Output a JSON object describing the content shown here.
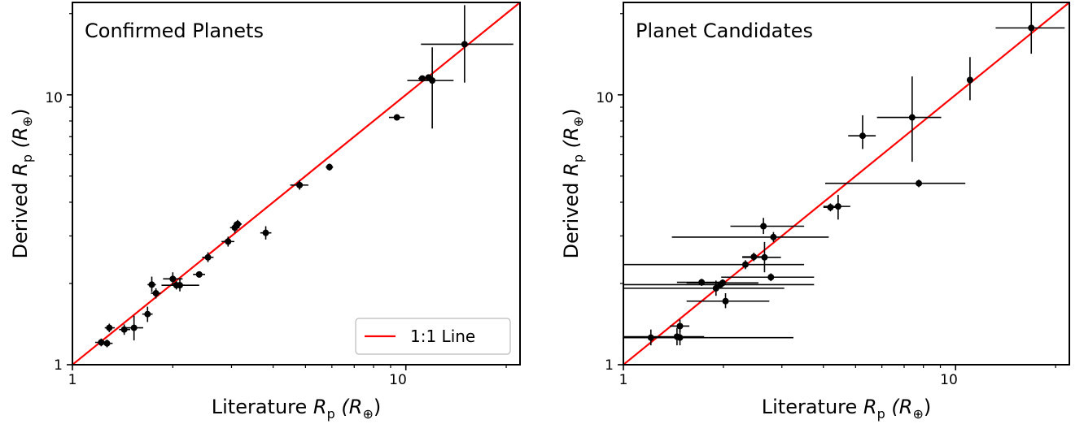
{
  "chart_data": [
    {
      "type": "scatter",
      "title": "Confirmed Planets",
      "xlabel": "Literature R_p (R_⊕)",
      "ylabel": "Derived R_p (R_⊕)",
      "xlabel_parts": {
        "pre": "Literature ",
        "sym": "R",
        "sub": "p",
        "unit": " (R",
        "unitsub": "⊕",
        "close": ")"
      },
      "ylabel_parts": {
        "pre": "Derived ",
        "sym": "R",
        "sub": "p",
        "unit": " (R",
        "unitsub": "⊕",
        "close": ")"
      },
      "xscale": "log",
      "yscale": "log",
      "xlim": [
        1,
        22
      ],
      "ylim": [
        1,
        22
      ],
      "xticks": [
        1,
        10
      ],
      "yticks": [
        1,
        10
      ],
      "xtick_labels": [
        "1",
        "10"
      ],
      "ytick_labels": [
        "1",
        "10"
      ],
      "grid": false,
      "legend": {
        "position": "bottom-right",
        "entries": [
          "1:1 Line"
        ]
      },
      "reference_line": {
        "label": "1:1 Line",
        "color": "#ff0000"
      },
      "marker_color": "#000000",
      "points": [
        {
          "x": 1.22,
          "y": 1.21,
          "xlo": 1.17,
          "xhi": 1.28,
          "ylo": 1.17,
          "yhi": 1.25
        },
        {
          "x": 1.27,
          "y": 1.2,
          "xlo": 1.22,
          "xhi": 1.32,
          "ylo": 1.16,
          "yhi": 1.24
        },
        {
          "x": 1.29,
          "y": 1.37,
          "xlo": 1.25,
          "xhi": 1.34,
          "ylo": 1.32,
          "yhi": 1.42
        },
        {
          "x": 1.43,
          "y": 1.35,
          "xlo": 1.38,
          "xhi": 1.49,
          "ylo": 1.29,
          "yhi": 1.41
        },
        {
          "x": 1.53,
          "y": 1.37,
          "xlo": 1.43,
          "xhi": 1.63,
          "ylo": 1.23,
          "yhi": 1.52
        },
        {
          "x": 1.68,
          "y": 1.54,
          "xlo": 1.62,
          "xhi": 1.74,
          "ylo": 1.44,
          "yhi": 1.64
        },
        {
          "x": 1.73,
          "y": 1.98,
          "xlo": 1.68,
          "xhi": 1.78,
          "ylo": 1.86,
          "yhi": 2.12
        },
        {
          "x": 1.78,
          "y": 1.84,
          "xlo": 1.72,
          "xhi": 1.84,
          "ylo": 1.76,
          "yhi": 1.92
        },
        {
          "x": 2.0,
          "y": 2.08,
          "xlo": 1.87,
          "xhi": 2.14,
          "ylo": 1.97,
          "yhi": 2.2
        },
        {
          "x": 2.05,
          "y": 1.97,
          "xlo": 1.85,
          "xhi": 2.4,
          "ylo": 1.9,
          "yhi": 2.04
        },
        {
          "x": 2.1,
          "y": 1.97,
          "xlo": 2.03,
          "xhi": 2.17,
          "ylo": 1.87,
          "yhi": 2.07
        },
        {
          "x": 2.4,
          "y": 2.16,
          "xlo": 2.3,
          "xhi": 2.5,
          "ylo": 2.1,
          "yhi": 2.22
        },
        {
          "x": 2.55,
          "y": 2.5,
          "xlo": 2.45,
          "xhi": 2.65,
          "ylo": 2.4,
          "yhi": 2.61
        },
        {
          "x": 2.93,
          "y": 2.86,
          "xlo": 2.8,
          "xhi": 3.06,
          "ylo": 2.74,
          "yhi": 2.98
        },
        {
          "x": 3.07,
          "y": 3.22,
          "xlo": 2.97,
          "xhi": 3.17,
          "ylo": 3.08,
          "yhi": 3.38
        },
        {
          "x": 3.13,
          "y": 3.32,
          "xlo": 3.04,
          "xhi": 3.22,
          "ylo": 3.21,
          "yhi": 3.44
        },
        {
          "x": 3.8,
          "y": 3.08,
          "xlo": 3.66,
          "xhi": 3.95,
          "ylo": 2.91,
          "yhi": 3.26
        },
        {
          "x": 4.8,
          "y": 4.63,
          "xlo": 4.5,
          "xhi": 5.1,
          "ylo": 4.45,
          "yhi": 4.82
        },
        {
          "x": 5.9,
          "y": 5.4,
          "xlo": 5.75,
          "xhi": 6.05,
          "ylo": 5.24,
          "yhi": 5.56
        },
        {
          "x": 9.4,
          "y": 8.25,
          "xlo": 8.9,
          "xhi": 9.9,
          "ylo": 8.1,
          "yhi": 8.4
        },
        {
          "x": 11.2,
          "y": 11.5,
          "xlo": 10.9,
          "xhi": 11.5,
          "ylo": 11.3,
          "yhi": 11.7
        },
        {
          "x": 11.7,
          "y": 11.6,
          "xlo": 11.4,
          "xhi": 12.0,
          "ylo": 11.4,
          "yhi": 11.8
        },
        {
          "x": 12.0,
          "y": 11.3,
          "xlo": 10.1,
          "xhi": 13.9,
          "ylo": 7.5,
          "yhi": 15.0
        },
        {
          "x": 15.0,
          "y": 15.4,
          "xlo": 11.1,
          "xhi": 21.0,
          "ylo": 11.1,
          "yhi": 21.5
        }
      ]
    },
    {
      "type": "scatter",
      "title": "Planet Candidates",
      "xlabel": "Literature R_p (R_⊕)",
      "ylabel": "Derived R_p (R_⊕)",
      "xlabel_parts": {
        "pre": "Literature ",
        "sym": "R",
        "sub": "p",
        "unit": " (R",
        "unitsub": "⊕",
        "close": ")"
      },
      "ylabel_parts": {
        "pre": "Derived ",
        "sym": "R",
        "sub": "p",
        "unit": " (R",
        "unitsub": "⊕",
        "close": ")"
      },
      "xscale": "log",
      "yscale": "log",
      "xlim": [
        1,
        22
      ],
      "ylim": [
        1,
        22
      ],
      "xticks": [
        1,
        10
      ],
      "yticks": [
        1,
        10
      ],
      "xtick_labels": [
        "1",
        "10"
      ],
      "ytick_labels": [
        "1",
        "10"
      ],
      "grid": false,
      "reference_line": {
        "label": "1:1 Line",
        "color": "#ff0000"
      },
      "marker_color": "#000000",
      "points": [
        {
          "x": 1.21,
          "y": 1.26,
          "xlo": 0.9,
          "xhi": 1.5,
          "ylo": 1.18,
          "yhi": 1.35
        },
        {
          "x": 1.45,
          "y": 1.27,
          "xlo": 0.9,
          "xhi": 1.75,
          "ylo": 1.18,
          "yhi": 1.37
        },
        {
          "x": 1.48,
          "y": 1.39,
          "xlo": 1.38,
          "xhi": 1.58,
          "ylo": 1.32,
          "yhi": 1.47
        },
        {
          "x": 1.48,
          "y": 1.26,
          "xlo": 0.9,
          "xhi": 3.25,
          "ylo": 1.18,
          "yhi": 1.35
        },
        {
          "x": 1.72,
          "y": 2.02,
          "xlo": 1.45,
          "xhi": 1.95,
          "ylo": 1.96,
          "yhi": 2.08
        },
        {
          "x": 1.9,
          "y": 1.92,
          "xlo": 0.9,
          "xhi": 3.05,
          "ylo": 1.8,
          "yhi": 2.05
        },
        {
          "x": 1.96,
          "y": 1.98,
          "xlo": 0.9,
          "xhi": 3.75,
          "ylo": 1.93,
          "yhi": 2.04
        },
        {
          "x": 1.99,
          "y": 2.01,
          "xlo": 1.55,
          "xhi": 2.55,
          "ylo": 1.95,
          "yhi": 2.07
        },
        {
          "x": 2.03,
          "y": 1.72,
          "xlo": 1.55,
          "xhi": 2.75,
          "ylo": 1.62,
          "yhi": 1.84
        },
        {
          "x": 2.33,
          "y": 2.35,
          "xlo": 0.9,
          "xhi": 3.5,
          "ylo": 2.26,
          "yhi": 2.44
        },
        {
          "x": 2.47,
          "y": 2.51,
          "xlo": 2.28,
          "xhi": 2.68,
          "ylo": 2.42,
          "yhi": 2.6
        },
        {
          "x": 2.64,
          "y": 3.26,
          "xlo": 2.1,
          "xhi": 3.5,
          "ylo": 3.05,
          "yhi": 3.5
        },
        {
          "x": 2.66,
          "y": 2.5,
          "xlo": 2.28,
          "xhi": 2.98,
          "ylo": 2.2,
          "yhi": 2.85
        },
        {
          "x": 2.78,
          "y": 2.11,
          "xlo": 1.97,
          "xhi": 3.75,
          "ylo": 2.04,
          "yhi": 2.18
        },
        {
          "x": 2.83,
          "y": 2.97,
          "xlo": 1.4,
          "xhi": 4.15,
          "ylo": 2.85,
          "yhi": 3.1
        },
        {
          "x": 4.2,
          "y": 3.83,
          "xlo": 4.0,
          "xhi": 4.4,
          "ylo": 3.7,
          "yhi": 3.96
        },
        {
          "x": 4.43,
          "y": 3.86,
          "xlo": 4.0,
          "xhi": 4.82,
          "ylo": 3.45,
          "yhi": 4.26
        },
        {
          "x": 5.25,
          "y": 7.05,
          "xlo": 4.75,
          "xhi": 5.75,
          "ylo": 6.3,
          "yhi": 8.4
        },
        {
          "x": 7.4,
          "y": 8.25,
          "xlo": 5.8,
          "xhi": 9.05,
          "ylo": 5.65,
          "yhi": 11.7
        },
        {
          "x": 7.75,
          "y": 4.7,
          "xlo": 4.05,
          "xhi": 10.7,
          "ylo": 4.55,
          "yhi": 4.85
        },
        {
          "x": 11.05,
          "y": 11.35,
          "xlo": 10.9,
          "xhi": 11.2,
          "ylo": 9.55,
          "yhi": 13.8
        },
        {
          "x": 16.9,
          "y": 17.7,
          "xlo": 13.2,
          "xhi": 21.3,
          "ylo": 14.2,
          "yhi": 22.0
        }
      ]
    }
  ]
}
